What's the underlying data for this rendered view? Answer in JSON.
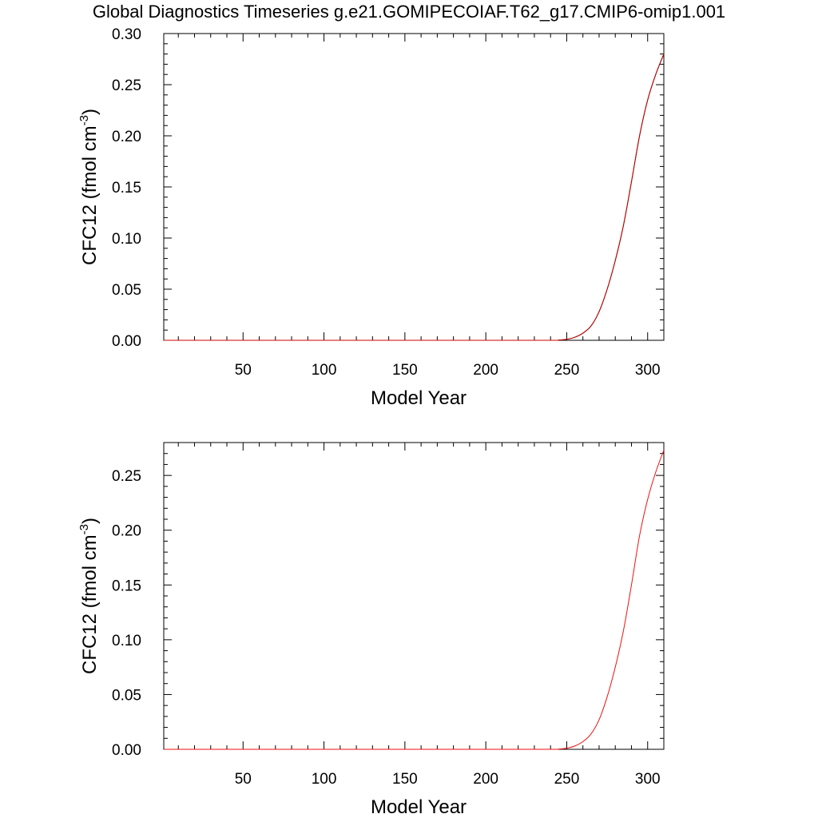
{
  "title": "Global Diagnostics Timeseries g.e21.GOMIPECOIAF.T62_g17.CMIP6-omip1.001",
  "chart_data": [
    {
      "type": "line",
      "xlabel": "Model Year",
      "ylabel": "CFC12 (fmol cm",
      "ylabel_sup": "-3",
      "ylabel_close": ")",
      "xlim": [
        1,
        310
      ],
      "ylim": [
        0,
        0.3
      ],
      "xticks": [
        50,
        100,
        150,
        200,
        250,
        300
      ],
      "yticks": [
        0.0,
        0.05,
        0.1,
        0.15,
        0.2,
        0.25,
        0.3
      ],
      "ytick_labels": [
        "0.00",
        "0.05",
        "0.10",
        "0.15",
        "0.20",
        "0.25",
        "0.30"
      ],
      "grid": false,
      "series": [
        {
          "color": "#000000",
          "x": [
            1,
            50,
            100,
            150,
            200,
            240,
            245,
            250,
            255,
            260,
            265,
            270,
            275,
            280,
            285,
            290,
            295,
            300,
            305,
            310
          ],
          "y": [
            0,
            0,
            0,
            0,
            0,
            0,
            0.0002,
            0.001,
            0.003,
            0.007,
            0.014,
            0.028,
            0.05,
            0.078,
            0.112,
            0.155,
            0.2,
            0.235,
            0.26,
            0.28
          ]
        },
        {
          "color": "#cc0000",
          "x": [
            1,
            50,
            100,
            150,
            200,
            240,
            245,
            250,
            255,
            260,
            265,
            270,
            275,
            280,
            285,
            290,
            295,
            300,
            305,
            310
          ],
          "y": [
            0,
            0,
            0,
            0,
            0,
            0,
            0.0002,
            0.001,
            0.003,
            0.007,
            0.014,
            0.028,
            0.05,
            0.078,
            0.112,
            0.155,
            0.2,
            0.235,
            0.26,
            0.28
          ]
        }
      ]
    },
    {
      "type": "line",
      "xlabel": "Model Year",
      "ylabel": "CFC12 (fmol cm",
      "ylabel_sup": "-3",
      "ylabel_close": ")",
      "xlim": [
        1,
        310
      ],
      "ylim": [
        0,
        0.28
      ],
      "xticks": [
        50,
        100,
        150,
        200,
        250,
        300
      ],
      "yticks": [
        0.0,
        0.05,
        0.1,
        0.15,
        0.2,
        0.25
      ],
      "ytick_labels": [
        "0.00",
        "0.05",
        "0.10",
        "0.15",
        "0.20",
        "0.25"
      ],
      "grid": false,
      "series": [
        {
          "color": "#ee1111",
          "x": [
            1,
            50,
            100,
            150,
            200,
            240,
            245,
            250,
            255,
            260,
            265,
            270,
            275,
            280,
            285,
            290,
            295,
            300,
            305,
            310
          ],
          "y": [
            0,
            0,
            0,
            0,
            0,
            0,
            0.0002,
            0.001,
            0.003,
            0.007,
            0.014,
            0.027,
            0.048,
            0.075,
            0.108,
            0.15,
            0.195,
            0.228,
            0.253,
            0.273
          ]
        }
      ]
    }
  ]
}
